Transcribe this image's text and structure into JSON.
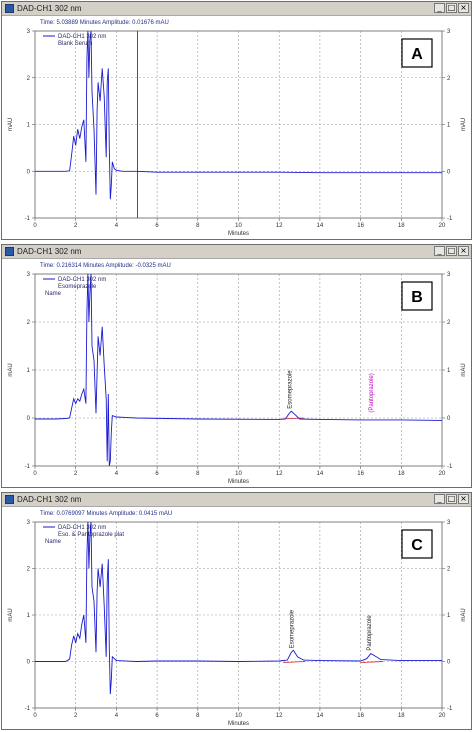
{
  "chart_data": [
    {
      "type": "line",
      "panel": "A",
      "window_title": "DAD-CH1 302 nm",
      "status": "Time: 5.03889 Minutes   Amplitude: 0.01676 mAU",
      "legend": [
        "DAD-CH1 302 nm",
        "Blank Serum"
      ],
      "name_label": "",
      "xlabel": "Minutes",
      "ylabel": "mAU",
      "xlim": [
        0,
        20
      ],
      "ylim": [
        -1,
        3
      ],
      "xticks": [
        0,
        2,
        4,
        6,
        8,
        10,
        12,
        14,
        16,
        18,
        20
      ],
      "yticks": [
        -1,
        0,
        1,
        2,
        3
      ],
      "cursor_x": 5.04,
      "peaks": [],
      "trace": [
        [
          0,
          0.0
        ],
        [
          0.5,
          0.0
        ],
        [
          1.0,
          0.0
        ],
        [
          1.5,
          0.0
        ],
        [
          1.7,
          0.01
        ],
        [
          1.8,
          0.35
        ],
        [
          1.9,
          0.75
        ],
        [
          2.0,
          0.55
        ],
        [
          2.1,
          0.9
        ],
        [
          2.2,
          0.7
        ],
        [
          2.3,
          0.95
        ],
        [
          2.4,
          1.1
        ],
        [
          2.5,
          0.2
        ],
        [
          2.55,
          2.4
        ],
        [
          2.6,
          3.0
        ],
        [
          2.65,
          2.0
        ],
        [
          2.7,
          2.8
        ],
        [
          2.75,
          3.0
        ],
        [
          2.8,
          1.7
        ],
        [
          2.9,
          0.9
        ],
        [
          3.0,
          -0.5
        ],
        [
          3.05,
          1.3
        ],
        [
          3.1,
          1.9
        ],
        [
          3.2,
          1.5
        ],
        [
          3.3,
          2.2
        ],
        [
          3.4,
          1.6
        ],
        [
          3.5,
          0.3
        ],
        [
          3.55,
          1.9
        ],
        [
          3.6,
          2.2
        ],
        [
          3.65,
          0.5
        ],
        [
          3.7,
          -0.6
        ],
        [
          3.75,
          -0.3
        ],
        [
          3.8,
          0.2
        ],
        [
          3.9,
          0.05
        ],
        [
          4.0,
          0.02
        ],
        [
          4.3,
          0.0
        ],
        [
          5.0,
          0.0
        ],
        [
          6.0,
          -0.02
        ],
        [
          8.0,
          -0.02
        ],
        [
          10.0,
          -0.02
        ],
        [
          12.0,
          -0.02
        ],
        [
          14.0,
          -0.03
        ],
        [
          16.0,
          -0.03
        ],
        [
          18.0,
          -0.03
        ],
        [
          20.0,
          -0.03
        ]
      ]
    },
    {
      "type": "line",
      "panel": "B",
      "window_title": "DAD-CH1 302 nm",
      "status": "Time: 0.216314 Minutes   Amplitude: -0.0325 mAU",
      "legend": [
        "DAD-CH1 302 nm",
        "Esomeprazole"
      ],
      "name_label": "Name",
      "xlabel": "Minutes",
      "ylabel": "mAU",
      "xlim": [
        0,
        20
      ],
      "ylim": [
        -1,
        3
      ],
      "xticks": [
        0,
        2,
        4,
        6,
        8,
        10,
        12,
        14,
        16,
        18,
        20
      ],
      "yticks": [
        -1,
        0,
        1,
        2,
        3
      ],
      "peaks": [
        {
          "label": "Esomeprazole",
          "x": 12.6,
          "y": 0.13,
          "color": "#202020"
        },
        {
          "label": "(Pantoprazole)",
          "x": 16.6,
          "y": 0.05,
          "color": "#c000c0"
        }
      ],
      "trace": [
        [
          0,
          -0.02
        ],
        [
          1.0,
          -0.02
        ],
        [
          1.5,
          -0.01
        ],
        [
          1.7,
          0.0
        ],
        [
          1.8,
          0.2
        ],
        [
          1.9,
          0.4
        ],
        [
          2.0,
          0.3
        ],
        [
          2.1,
          0.4
        ],
        [
          2.2,
          0.35
        ],
        [
          2.3,
          0.5
        ],
        [
          2.4,
          0.6
        ],
        [
          2.5,
          0.3
        ],
        [
          2.55,
          2.2
        ],
        [
          2.6,
          3.0
        ],
        [
          2.65,
          2.0
        ],
        [
          2.7,
          2.6
        ],
        [
          2.75,
          3.0
        ],
        [
          2.8,
          1.5
        ],
        [
          2.9,
          1.2
        ],
        [
          3.0,
          0.1
        ],
        [
          3.1,
          1.7
        ],
        [
          3.2,
          1.3
        ],
        [
          3.3,
          1.9
        ],
        [
          3.4,
          1.1
        ],
        [
          3.5,
          0.4
        ],
        [
          3.55,
          -0.9
        ],
        [
          3.6,
          0.5
        ],
        [
          3.65,
          -1.0
        ],
        [
          3.7,
          -0.9
        ],
        [
          3.75,
          -0.3
        ],
        [
          3.8,
          0.05
        ],
        [
          4.0,
          0.02
        ],
        [
          5.0,
          0.0
        ],
        [
          8.0,
          -0.02
        ],
        [
          12.0,
          -0.03
        ],
        [
          12.3,
          -0.02
        ],
        [
          12.5,
          0.1
        ],
        [
          12.6,
          0.14
        ],
        [
          12.8,
          0.06
        ],
        [
          13.0,
          -0.02
        ],
        [
          14.0,
          -0.03
        ],
        [
          16.0,
          -0.04
        ],
        [
          18.0,
          -0.04
        ],
        [
          20.0,
          -0.05
        ]
      ]
    },
    {
      "type": "line",
      "panel": "C",
      "window_title": "DAD-CH1 302 nm",
      "status": "Time: 0.0769097 Minutes   Amplitude: 0.0415 mAU",
      "legend": [
        "DAD-CH1 302 nm",
        "Eso. & Pantoprazole plat"
      ],
      "name_label": "Name",
      "xlabel": "Minutes",
      "ylabel": "mAU",
      "xlim": [
        0,
        20
      ],
      "ylim": [
        -1,
        3
      ],
      "xticks": [
        0,
        2,
        4,
        6,
        8,
        10,
        12,
        14,
        16,
        18,
        20
      ],
      "yticks": [
        -1,
        0,
        1,
        2,
        3
      ],
      "peaks": [
        {
          "label": "Esomeprazole",
          "x": 12.7,
          "y": 0.22,
          "color": "#202020"
        },
        {
          "label": "Pantoprazole",
          "x": 16.5,
          "y": 0.17,
          "color": "#202020"
        }
      ],
      "trace": [
        [
          0,
          0.0
        ],
        [
          1.0,
          0.0
        ],
        [
          1.5,
          0.0
        ],
        [
          1.7,
          0.05
        ],
        [
          1.8,
          0.35
        ],
        [
          1.9,
          0.55
        ],
        [
          2.0,
          0.4
        ],
        [
          2.1,
          0.6
        ],
        [
          2.2,
          0.5
        ],
        [
          2.3,
          0.8
        ],
        [
          2.4,
          1.0
        ],
        [
          2.5,
          0.4
        ],
        [
          2.55,
          2.3
        ],
        [
          2.6,
          3.0
        ],
        [
          2.65,
          2.0
        ],
        [
          2.7,
          2.7
        ],
        [
          2.75,
          3.0
        ],
        [
          2.8,
          1.6
        ],
        [
          2.9,
          1.3
        ],
        [
          3.0,
          0.2
        ],
        [
          3.05,
          1.5
        ],
        [
          3.1,
          2.0
        ],
        [
          3.2,
          1.6
        ],
        [
          3.3,
          2.1
        ],
        [
          3.4,
          1.2
        ],
        [
          3.5,
          0.1
        ],
        [
          3.55,
          1.7
        ],
        [
          3.6,
          2.2
        ],
        [
          3.65,
          0.3
        ],
        [
          3.7,
          -0.7
        ],
        [
          3.75,
          -0.4
        ],
        [
          3.8,
          0.1
        ],
        [
          4.0,
          0.02
        ],
        [
          5.0,
          0.0
        ],
        [
          6.0,
          0.01
        ],
        [
          8.0,
          0.01
        ],
        [
          10.0,
          0.0
        ],
        [
          12.0,
          0.01
        ],
        [
          12.4,
          0.03
        ],
        [
          12.6,
          0.2
        ],
        [
          12.7,
          0.24
        ],
        [
          12.9,
          0.1
        ],
        [
          13.2,
          0.03
        ],
        [
          14.0,
          0.02
        ],
        [
          16.0,
          0.01
        ],
        [
          16.3,
          0.06
        ],
        [
          16.5,
          0.17
        ],
        [
          16.7,
          0.12
        ],
        [
          17.0,
          0.04
        ],
        [
          18.0,
          0.02
        ],
        [
          20.0,
          0.02
        ]
      ]
    }
  ]
}
